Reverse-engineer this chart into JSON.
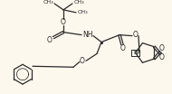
{
  "bg_color": "#fdf8ee",
  "line_color": "#2a2a2a",
  "lw": 0.9,
  "figsize": [
    1.9,
    1.04
  ],
  "dpi": 100,
  "xlim": [
    0,
    190
  ],
  "ylim": [
    0,
    104
  ]
}
